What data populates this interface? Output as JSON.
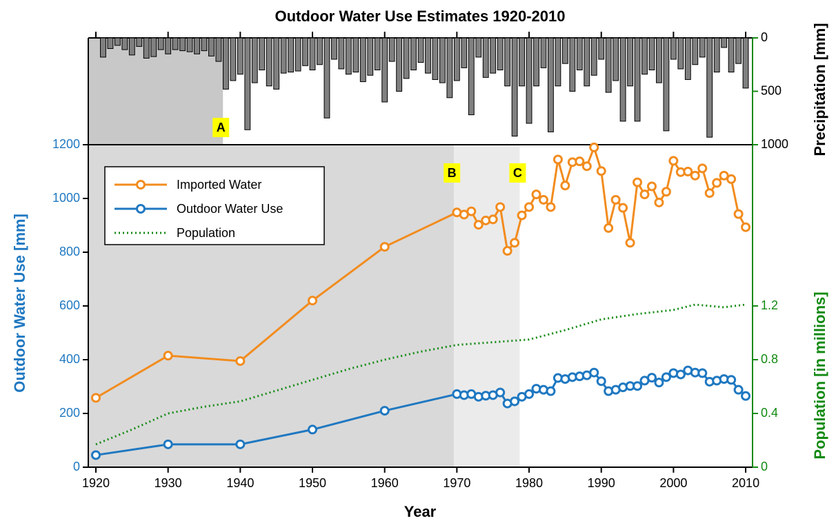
{
  "chart_data": [
    {
      "type": "bar",
      "title": "Outdoor Water Use Estimates 1920-2010",
      "y2label": "Precipitation [mm]",
      "xlim": [
        1918.95,
        2010.95
      ],
      "x": [
        1921,
        1922,
        1923,
        1924,
        1925,
        1926,
        1927,
        1928,
        1929,
        1930,
        1931,
        1932,
        1933,
        1934,
        1935,
        1936,
        1937,
        1938,
        1939,
        1940,
        1941,
        1942,
        1943,
        1944,
        1945,
        1946,
        1947,
        1948,
        1949,
        1950,
        1951,
        1952,
        1953,
        1954,
        1955,
        1956,
        1957,
        1958,
        1959,
        1960,
        1961,
        1962,
        1963,
        1964,
        1965,
        1966,
        1967,
        1968,
        1969,
        1970,
        1971,
        1972,
        1973,
        1974,
        1975,
        1976,
        1977,
        1978,
        1979,
        1980,
        1981,
        1982,
        1983,
        1984,
        1985,
        1986,
        1987,
        1988,
        1989,
        1990,
        1991,
        1992,
        1993,
        1994,
        1995,
        1996,
        1997,
        1998,
        1999,
        2000,
        2001,
        2002,
        2003,
        2004,
        2005,
        2006,
        2007,
        2008,
        2009,
        2010
      ],
      "values": [
        180,
        100,
        70,
        110,
        160,
        80,
        190,
        175,
        110,
        150,
        110,
        120,
        130,
        150,
        120,
        170,
        220,
        480,
        400,
        340,
        860,
        420,
        300,
        450,
        480,
        330,
        320,
        310,
        260,
        300,
        250,
        750,
        200,
        290,
        340,
        320,
        410,
        350,
        300,
        600,
        220,
        500,
        380,
        300,
        230,
        330,
        390,
        420,
        560,
        400,
        280,
        720,
        180,
        370,
        330,
        300,
        450,
        920,
        450,
        800,
        450,
        280,
        880,
        450,
        240,
        500,
        300,
        450,
        350,
        200,
        510,
        400,
        780,
        450,
        780,
        340,
        300,
        420,
        870,
        200,
        290,
        390,
        250,
        180,
        930,
        320,
        90,
        320,
        240,
        470
      ],
      "color": "#808080",
      "y2lim": [
        0,
        1000
      ],
      "y2_inverted": true,
      "y2ticks": [
        0,
        500,
        1000
      ],
      "annotations": [
        {
          "label": "A",
          "x": 1937.6,
          "shade": "#c8c8c8"
        }
      ]
    },
    {
      "type": "line",
      "xlabel": "Year",
      "ylabel": "Outdoor Water Use [mm]",
      "y2label": "Population [in millions]",
      "xlim": [
        1918.95,
        2010.95
      ],
      "xticks": [
        1920,
        1930,
        1940,
        1950,
        1960,
        1970,
        1980,
        1990,
        2000,
        2010
      ],
      "ylim": [
        0,
        1200
      ],
      "yticks": [
        0,
        200,
        400,
        600,
        800,
        1000,
        1200
      ],
      "y2lim": [
        0,
        2.4
      ],
      "y2ticks": [
        0,
        0.4,
        0.8,
        1.2
      ],
      "legend": "upper left",
      "series": [
        {
          "name": "Imported Water",
          "color": "#f28c1e",
          "marker": true,
          "x": [
            1920,
            1930,
            1940,
            1950,
            1960,
            1970,
            1971,
            1972,
            1973,
            1974,
            1975,
            1976,
            1977,
            1978,
            1979,
            1980,
            1981,
            1982,
            1983,
            1984,
            1985,
            1986,
            1987,
            1988,
            1989,
            1990,
            1991,
            1992,
            1993,
            1994,
            1995,
            1996,
            1997,
            1998,
            1999,
            2000,
            2001,
            2002,
            2003,
            2004,
            2005,
            2006,
            2007,
            2008,
            2009,
            2010
          ],
          "values": [
            258,
            415,
            395,
            620,
            820,
            948,
            940,
            952,
            902,
            918,
            922,
            968,
            805,
            835,
            937,
            968,
            1015,
            995,
            968,
            1145,
            1048,
            1135,
            1138,
            1120,
            1190,
            1102,
            890,
            995,
            965,
            835,
            1060,
            1015,
            1045,
            985,
            1025,
            1140,
            1098,
            1100,
            1085,
            1112,
            1020,
            1058,
            1085,
            1072,
            942,
            893
          ]
        },
        {
          "name": "Outdoor Water Use",
          "color": "#1f78c1",
          "marker": true,
          "x": [
            1920,
            1930,
            1940,
            1950,
            1960,
            1970,
            1971,
            1972,
            1973,
            1974,
            1975,
            1976,
            1977,
            1978,
            1979,
            1980,
            1981,
            1982,
            1983,
            1984,
            1985,
            1986,
            1987,
            1988,
            1989,
            1990,
            1991,
            1992,
            1993,
            1994,
            1995,
            1996,
            1997,
            1998,
            1999,
            2000,
            2001,
            2002,
            2003,
            2004,
            2005,
            2006,
            2007,
            2008,
            2009,
            2010
          ],
          "values": [
            45,
            85,
            85,
            140,
            210,
            272,
            268,
            272,
            262,
            266,
            268,
            278,
            237,
            245,
            262,
            272,
            292,
            288,
            283,
            332,
            328,
            335,
            338,
            342,
            352,
            320,
            283,
            288,
            297,
            302,
            302,
            322,
            333,
            315,
            335,
            350,
            345,
            360,
            352,
            350,
            318,
            322,
            328,
            325,
            288,
            265
          ]
        },
        {
          "name": "Population",
          "color": "#138a13",
          "axis": "y2",
          "dotted": true,
          "x": [
            1920,
            1925,
            1930,
            1935,
            1940,
            1945,
            1950,
            1955,
            1960,
            1965,
            1970,
            1975,
            1980,
            1985,
            1990,
            1995,
            2000,
            2003,
            2005,
            2007,
            2010
          ],
          "values": [
            0.17,
            0.28,
            0.4,
            0.45,
            0.49,
            0.57,
            0.65,
            0.73,
            0.8,
            0.86,
            0.91,
            0.93,
            0.95,
            1.02,
            1.1,
            1.14,
            1.17,
            1.21,
            1.2,
            1.19,
            1.21
          ]
        }
      ],
      "annotations": [
        {
          "label": "B",
          "x": 1969.6,
          "shade": "#d9d9d9"
        },
        {
          "label": "C",
          "x": 1978.7,
          "shade": "#ebebeb"
        }
      ]
    }
  ]
}
